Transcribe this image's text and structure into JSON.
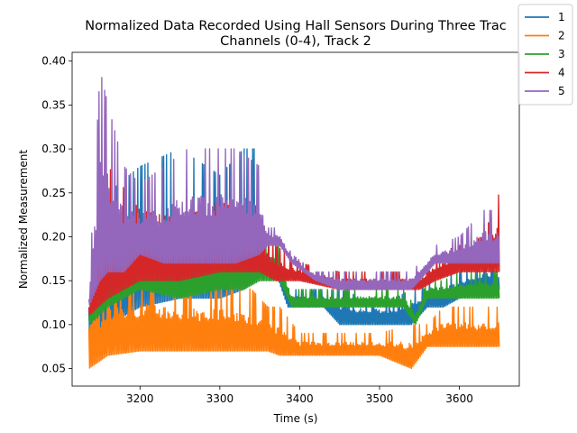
{
  "chart_data": {
    "type": "line",
    "title_line1": "Normalized Data Recorded Using Hall Sensors During Three Trac",
    "title_line2": "Channels (0-4), Track 2",
    "xlabel": "Time (s)",
    "ylabel": "Normalized Measurement",
    "xlim": [
      3115,
      3675
    ],
    "ylim": [
      0.03,
      0.41
    ],
    "xticks": [
      3200,
      3300,
      3400,
      3500,
      3600
    ],
    "xtick_labels": [
      "3200",
      "3300",
      "3400",
      "3500",
      "3600"
    ],
    "yticks": [
      0.05,
      0.1,
      0.15,
      0.2,
      0.25,
      0.3,
      0.35,
      0.4
    ],
    "ytick_labels": [
      "0.05",
      "0.10",
      "0.15",
      "0.20",
      "0.25",
      "0.30",
      "0.35",
      "0.40"
    ],
    "grid": false,
    "legend_position": "top-right",
    "series": [
      {
        "name": "1",
        "color": "#1f77b4",
        "x": [
          3136,
          3160,
          3200,
          3250,
          3300,
          3330,
          3345,
          3355,
          3370,
          3385,
          3400,
          3430,
          3450,
          3480,
          3500,
          3520,
          3540,
          3560,
          3580,
          3600,
          3630,
          3650
        ],
        "low": [
          0.08,
          0.1,
          0.12,
          0.13,
          0.13,
          0.14,
          0.15,
          0.16,
          0.16,
          0.12,
          0.12,
          0.12,
          0.1,
          0.1,
          0.1,
          0.1,
          0.1,
          0.12,
          0.12,
          0.13,
          0.14,
          0.14
        ],
        "high": [
          0.12,
          0.25,
          0.28,
          0.3,
          0.27,
          0.3,
          0.3,
          0.2,
          0.18,
          0.14,
          0.14,
          0.14,
          0.14,
          0.13,
          0.13,
          0.13,
          0.14,
          0.15,
          0.16,
          0.16,
          0.17,
          0.17
        ]
      },
      {
        "name": "2",
        "color": "#ff7f0e",
        "x": [
          3136,
          3160,
          3200,
          3250,
          3300,
          3340,
          3360,
          3375,
          3400,
          3450,
          3500,
          3540,
          3560,
          3580,
          3600,
          3630,
          3650
        ],
        "low": [
          0.05,
          0.065,
          0.07,
          0.07,
          0.07,
          0.07,
          0.07,
          0.065,
          0.065,
          0.065,
          0.065,
          0.05,
          0.075,
          0.075,
          0.075,
          0.075,
          0.075
        ],
        "high": [
          0.13,
          0.16,
          0.16,
          0.15,
          0.15,
          0.14,
          0.12,
          0.12,
          0.09,
          0.09,
          0.09,
          0.1,
          0.1,
          0.12,
          0.12,
          0.12,
          0.12
        ]
      },
      {
        "name": "3",
        "color": "#2ca02c",
        "x": [
          3136,
          3160,
          3200,
          3250,
          3300,
          3330,
          3350,
          3375,
          3390,
          3420,
          3460,
          3500,
          3530,
          3545,
          3560,
          3580,
          3600,
          3630,
          3650
        ],
        "low": [
          0.1,
          0.12,
          0.14,
          0.13,
          0.14,
          0.14,
          0.15,
          0.15,
          0.12,
          0.12,
          0.12,
          0.12,
          0.12,
          0.1,
          0.13,
          0.13,
          0.13,
          0.13,
          0.13
        ],
        "high": [
          0.12,
          0.19,
          0.18,
          0.18,
          0.19,
          0.21,
          0.21,
          0.19,
          0.14,
          0.14,
          0.14,
          0.14,
          0.14,
          0.12,
          0.15,
          0.15,
          0.16,
          0.16,
          0.16
        ]
      },
      {
        "name": "4",
        "color": "#d62728",
        "x": [
          3136,
          3160,
          3200,
          3250,
          3300,
          3350,
          3370,
          3400,
          3450,
          3500,
          3550,
          3570,
          3600,
          3630,
          3650
        ],
        "low": [
          0.11,
          0.13,
          0.15,
          0.15,
          0.16,
          0.16,
          0.15,
          0.15,
          0.14,
          0.14,
          0.14,
          0.15,
          0.16,
          0.16,
          0.16
        ],
        "high": [
          0.13,
          0.28,
          0.23,
          0.22,
          0.24,
          0.22,
          0.19,
          0.17,
          0.16,
          0.16,
          0.16,
          0.18,
          0.19,
          0.2,
          0.25
        ]
      },
      {
        "name": "5",
        "color": "#9467bd",
        "x": [
          3136,
          3150,
          3160,
          3180,
          3200,
          3230,
          3260,
          3300,
          3320,
          3350,
          3360,
          3375,
          3390,
          3420,
          3450,
          3500,
          3540,
          3560,
          3570,
          3600,
          3630,
          3650
        ],
        "low": [
          0.12,
          0.15,
          0.16,
          0.16,
          0.18,
          0.17,
          0.17,
          0.17,
          0.17,
          0.18,
          0.19,
          0.19,
          0.17,
          0.15,
          0.14,
          0.14,
          0.14,
          0.16,
          0.17,
          0.17,
          0.17,
          0.17
        ],
        "high": [
          0.14,
          0.39,
          0.35,
          0.28,
          0.26,
          0.28,
          0.3,
          0.3,
          0.3,
          0.28,
          0.21,
          0.21,
          0.18,
          0.16,
          0.16,
          0.16,
          0.16,
          0.18,
          0.19,
          0.2,
          0.23,
          0.23
        ]
      }
    ]
  }
}
